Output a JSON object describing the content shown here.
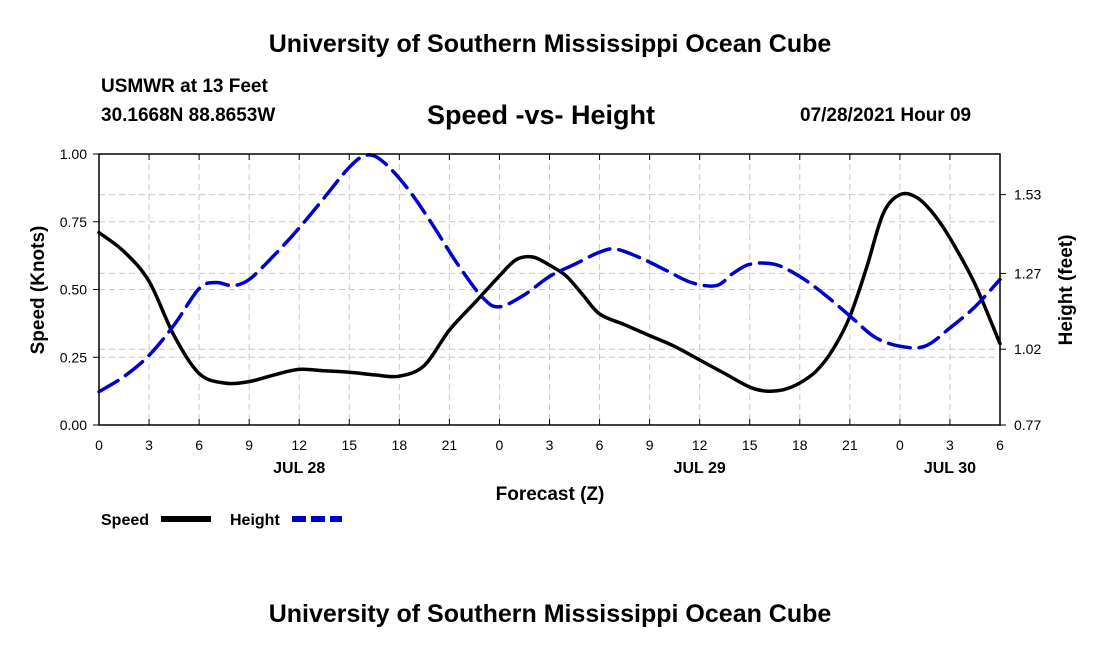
{
  "header": {
    "title": "University of Southern Mississippi Ocean Cube",
    "station_name": "USMWR at 13 Feet",
    "station_coords": "30.1668N  88.8653W",
    "subtitle": "Speed -vs- Height",
    "issue_time": "07/28/2021 Hour 09"
  },
  "footer": {
    "title": "University of Southern Mississippi Ocean Cube"
  },
  "chart_data": {
    "type": "line",
    "title": "Speed -vs- Height",
    "xlabel": "Forecast (Z)",
    "ylabel": "Speed (Knots)",
    "y2label": "Height (feet)",
    "x_range": [
      0,
      54
    ],
    "ylim": [
      0,
      1
    ],
    "y2lim": [
      0.77,
      1.664
    ],
    "x_ticks": [
      0,
      3,
      6,
      9,
      12,
      15,
      18,
      21,
      24,
      27,
      30,
      33,
      36,
      39,
      42,
      45,
      48,
      51,
      54
    ],
    "x_tick_labels": [
      "0",
      "3",
      "6",
      "9",
      "12",
      "15",
      "18",
      "21",
      "0",
      "3",
      "6",
      "9",
      "12",
      "15",
      "18",
      "21",
      "0",
      "3",
      "6"
    ],
    "y_ticks": [
      0,
      0.25,
      0.5,
      0.75,
      1.0
    ],
    "y_tick_labels": [
      "0.00",
      "0.25",
      "0.50",
      "0.75",
      "1.00"
    ],
    "y2_ticks": [
      0.77,
      1.02,
      1.27,
      1.53
    ],
    "y2_tick_labels": [
      "0.77",
      "1.02",
      "1.27",
      "1.53"
    ],
    "date_labels": [
      {
        "x": 12,
        "label": "JUL 28"
      },
      {
        "x": 36,
        "label": "JUL 29"
      },
      {
        "x": 51,
        "label": "JUL 30"
      }
    ],
    "grid": true,
    "legend_position": "bottom-left",
    "series": [
      {
        "name": "Speed",
        "axis": "left",
        "color": "#000000",
        "style": "solid",
        "x": [
          0,
          1.5,
          3,
          4.5,
          6,
          7.5,
          9,
          10.5,
          12,
          13.5,
          15,
          16.5,
          18,
          19.5,
          21,
          22.5,
          24,
          25,
          26,
          27,
          28,
          29,
          30,
          31.5,
          33,
          34.5,
          36,
          37.5,
          39,
          40,
          41,
          42,
          43,
          44,
          45,
          46,
          47,
          48,
          49,
          50,
          51,
          52.5,
          54
        ],
        "values": [
          0.71,
          0.64,
          0.53,
          0.33,
          0.19,
          0.155,
          0.16,
          0.185,
          0.205,
          0.2,
          0.195,
          0.185,
          0.18,
          0.22,
          0.35,
          0.45,
          0.55,
          0.61,
          0.62,
          0.59,
          0.55,
          0.48,
          0.41,
          0.37,
          0.33,
          0.29,
          0.24,
          0.19,
          0.14,
          0.125,
          0.13,
          0.155,
          0.2,
          0.28,
          0.4,
          0.58,
          0.78,
          0.85,
          0.84,
          0.78,
          0.69,
          0.52,
          0.3
        ]
      },
      {
        "name": "Height",
        "axis": "right",
        "color": "#0000cc",
        "style": "dashed",
        "x": [
          0,
          1.5,
          3,
          4.5,
          6,
          7,
          8,
          9,
          10.5,
          12,
          13.5,
          15,
          16,
          17,
          18.5,
          20,
          21.5,
          23,
          24,
          25.5,
          27,
          28.5,
          30,
          31,
          32.5,
          34,
          35.5,
          37,
          38,
          39,
          40.5,
          42,
          43.5,
          45,
          46.5,
          48,
          49.5,
          51,
          52.5,
          54
        ],
        "values": [
          0.88,
          0.93,
          1.0,
          1.1,
          1.22,
          1.24,
          1.23,
          1.25,
          1.33,
          1.42,
          1.52,
          1.62,
          1.66,
          1.64,
          1.55,
          1.43,
          1.3,
          1.19,
          1.16,
          1.2,
          1.26,
          1.3,
          1.34,
          1.35,
          1.32,
          1.28,
          1.24,
          1.23,
          1.27,
          1.3,
          1.3,
          1.26,
          1.2,
          1.13,
          1.06,
          1.03,
          1.03,
          1.09,
          1.16,
          1.25
        ]
      }
    ]
  }
}
